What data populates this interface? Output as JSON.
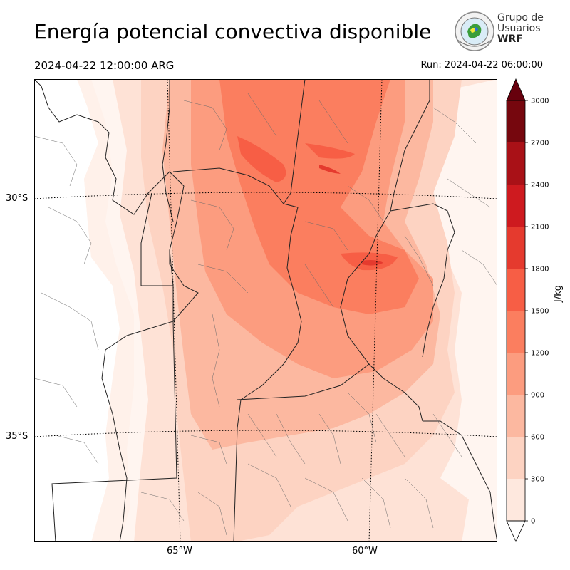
{
  "header": {
    "title": "Energía potencial convectiva disponible",
    "valid_time": "2024-04-22 12:00:00 ARG",
    "run_time": "Run: 2024-04-22 06:00:00"
  },
  "logo": {
    "line1": "Grupo de",
    "line2": "Usuarios",
    "line3": "WRF"
  },
  "map": {
    "latitude_labels": [
      "30°S",
      "35°S"
    ],
    "longitude_labels": [
      "65°W",
      "60°W"
    ]
  },
  "colorbar": {
    "units": "J/kg",
    "ticks": [
      "0",
      "300",
      "600",
      "900",
      "1200",
      "1500",
      "1800",
      "2100",
      "2400",
      "2700",
      "3000"
    ],
    "colors": [
      "#fee8de",
      "#fdd3c2",
      "#fcb8a0",
      "#fc9c7f",
      "#fb7e5f",
      "#f75e45",
      "#e53a2e",
      "#ce1a1f",
      "#a91117",
      "#76070e"
    ],
    "over_color": "#67000d",
    "under_color": "#ffffff"
  }
}
